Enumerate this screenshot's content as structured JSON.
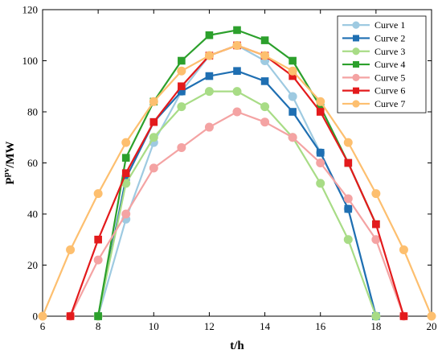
{
  "chart_data": {
    "type": "line",
    "title": "",
    "xlabel": "t/h",
    "ylabel": {
      "base": "P",
      "sup": "pv",
      "rest": "/MW"
    },
    "xlim": [
      6,
      20
    ],
    "ylim": [
      0,
      120
    ],
    "xticks": [
      6,
      8,
      10,
      12,
      14,
      16,
      18,
      20
    ],
    "yticks": [
      0,
      20,
      40,
      60,
      80,
      100,
      120
    ],
    "grid": false,
    "legend_position": "top-right",
    "series": [
      {
        "name": "Curve 1",
        "color": "#9ecae1",
        "marker": "circle",
        "x": [
          8,
          9,
          10,
          11,
          12,
          13,
          14,
          15,
          16,
          17,
          18
        ],
        "y": [
          0,
          38,
          68,
          88,
          102,
          106,
          100,
          86,
          64,
          42,
          0
        ]
      },
      {
        "name": "Curve 2",
        "color": "#1f6fb2",
        "marker": "square",
        "x": [
          8,
          9,
          10,
          11,
          12,
          13,
          14,
          15,
          16,
          17,
          18
        ],
        "y": [
          0,
          54,
          76,
          88,
          94,
          96,
          92,
          80,
          64,
          42,
          0
        ]
      },
      {
        "name": "Curve 3",
        "color": "#a8dc86",
        "marker": "circle",
        "x": [
          8,
          9,
          10,
          11,
          12,
          13,
          14,
          15,
          16,
          17,
          18
        ],
        "y": [
          0,
          52,
          70,
          82,
          88,
          88,
          82,
          70,
          52,
          30,
          0
        ]
      },
      {
        "name": "Curve 4",
        "color": "#2ca02c",
        "marker": "square",
        "x": [
          8,
          9,
          10,
          11,
          12,
          13,
          14,
          15,
          16,
          17,
          18
        ],
        "y": [
          0,
          62,
          84,
          100,
          110,
          112,
          108,
          100,
          82,
          60,
          36
        ]
      },
      {
        "name": "Curve 5",
        "color": "#f4a3a3",
        "marker": "circle",
        "x": [
          7,
          8,
          9,
          10,
          11,
          12,
          13,
          14,
          15,
          16,
          17,
          18,
          19
        ],
        "y": [
          0,
          22,
          40,
          58,
          66,
          74,
          80,
          76,
          70,
          60,
          46,
          30,
          0
        ]
      },
      {
        "name": "Curve 6",
        "color": "#e31a1c",
        "marker": "square",
        "x": [
          7,
          8,
          9,
          10,
          11,
          12,
          13,
          14,
          15,
          16,
          17,
          18,
          19
        ],
        "y": [
          0,
          30,
          56,
          76,
          90,
          102,
          106,
          102,
          94,
          80,
          60,
          36,
          0
        ]
      },
      {
        "name": "Curve 7",
        "color": "#fdbf6f",
        "marker": "circle",
        "x": [
          6,
          7,
          8,
          9,
          10,
          11,
          12,
          13,
          14,
          15,
          16,
          17,
          18,
          19,
          20
        ],
        "y": [
          0,
          26,
          48,
          68,
          84,
          96,
          102,
          106,
          102,
          96,
          84,
          68,
          48,
          26,
          0
        ]
      }
    ]
  }
}
